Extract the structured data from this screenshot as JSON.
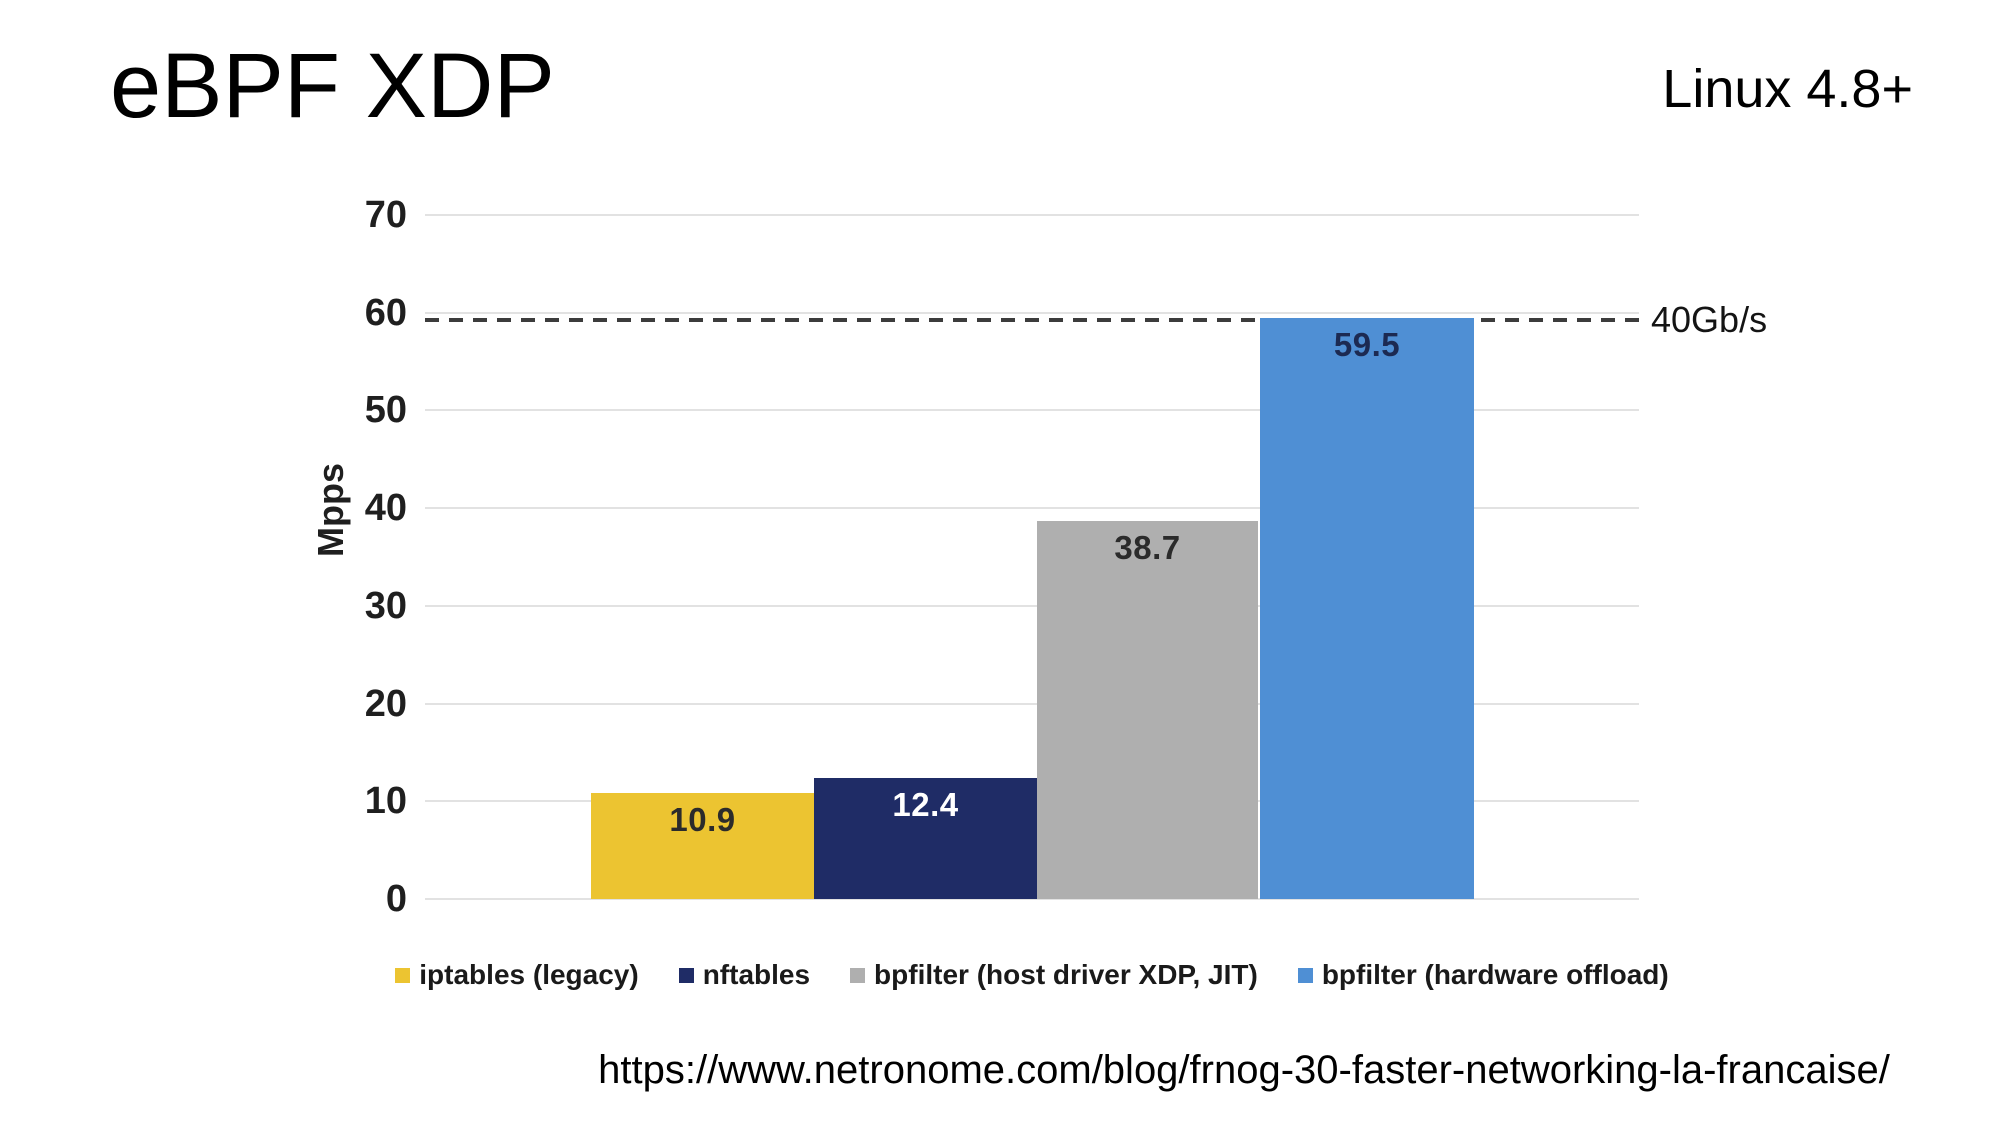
{
  "slide": {
    "title": "eBPF XDP",
    "top_right_note": "Linux 4.8+",
    "source_url": "https://www.netronome.com/blog/frnog-30-faster-networking-la-francaise/"
  },
  "chart_data": {
    "type": "bar",
    "title": "",
    "xlabel": "",
    "ylabel": "Mpps",
    "ylim": [
      0,
      70
    ],
    "yticks": [
      0,
      10,
      20,
      30,
      40,
      50,
      60,
      70
    ],
    "grid": true,
    "legend_position": "bottom",
    "categories": [
      "iptables (legacy)",
      "nftables",
      "bpfilter (host driver XDP, JIT)",
      "bpfilter (hardware offload)"
    ],
    "values": [
      10.9,
      12.4,
      38.7,
      59.5
    ],
    "value_labels": [
      "10.9",
      "12.4",
      "38.7",
      "59.5"
    ],
    "colors": [
      "#ECC431",
      "#1F2C66",
      "#AFAFAF",
      "#4F8FD4"
    ],
    "value_label_colors": [
      "#2B2B2B",
      "#FFFFFF",
      "#2B2B2B",
      "#1C2A52"
    ],
    "gridline_color": "#E2E2E2",
    "reference_line": {
      "value": 59.5,
      "label": "40Gb/s",
      "style": "dashed",
      "color": "#3C3C3C"
    }
  }
}
